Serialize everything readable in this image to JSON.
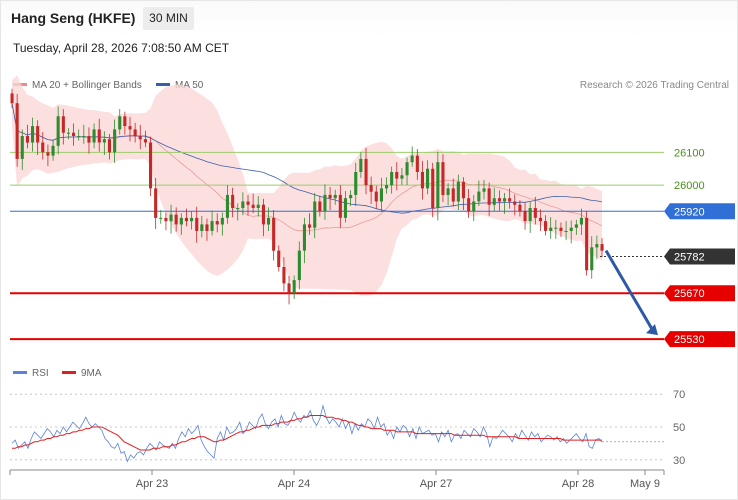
{
  "header": {
    "title": "Hang Seng (HKFE)",
    "timeframe": "30 MIN"
  },
  "datetime": "Tuesday, April 28, 2026 7:08:50 AM CET",
  "credit": "Research © 2026 Trading Central",
  "colors": {
    "bull": "#2e8b2e",
    "bear": "#c62828",
    "support": "#e60000",
    "resistance_faint": "#9acd6a",
    "pivot": "#2f6fd6",
    "last": "#333333",
    "ma50": "#3b5ea8",
    "bb_fill": "#fbd5d5",
    "ma20": "#e99a9a",
    "rsi": "#5b82d8",
    "rsi_ma": "#e02020",
    "arrow": "#2d5aa6"
  },
  "legend": {
    "ma20": "MA 20 + Bollinger Bands",
    "ma50": "MA 50"
  },
  "rsi_legend": {
    "rsi": "RSI",
    "ma": "9MA"
  },
  "chart_data": [
    {
      "type": "candlestick",
      "title": "",
      "price_range": [
        25460,
        26275
      ],
      "x_labels": [
        "Apr 23",
        "Apr 24",
        "Apr 27",
        "Apr 28",
        "May 9"
      ],
      "levels": [
        {
          "value": 26100,
          "label": "26100",
          "kind": "resistance"
        },
        {
          "value": 26000,
          "label": "26000",
          "kind": "resistance"
        },
        {
          "value": 25920,
          "label": "25920",
          "kind": "pivot"
        },
        {
          "value": 25782,
          "label": "25782",
          "kind": "last"
        },
        {
          "value": 25670,
          "label": "25670",
          "kind": "support"
        },
        {
          "value": 25530,
          "label": "25530",
          "kind": "support"
        }
      ],
      "close": [
        26250,
        26080,
        26150,
        26130,
        26180,
        26130,
        26100,
        26090,
        26120,
        26210,
        26160,
        26160,
        26150,
        26150,
        26150,
        26130,
        26170,
        26130,
        26140,
        26100,
        26170,
        26210,
        26180,
        26170,
        26150,
        26140,
        26130,
        25990,
        25900,
        25900,
        25890,
        25910,
        25880,
        25900,
        25890,
        25900,
        25860,
        25880,
        25860,
        25890,
        25880,
        25900,
        25970,
        25930,
        25930,
        25950,
        25940,
        25930,
        25940,
        25880,
        25900,
        25800,
        25750,
        25700,
        25670,
        25710,
        25800,
        25880,
        25870,
        25950,
        25920,
        25970,
        25960,
        25970,
        25900,
        25960,
        25970,
        26040,
        26080,
        26000,
        25980,
        25950,
        25990,
        26000,
        26040,
        26020,
        26030,
        26070,
        26090,
        26040,
        25990,
        26050,
        25930,
        26070,
        25970,
        25990,
        25950,
        26010,
        25960,
        25920,
        25950,
        25980,
        25990,
        25940,
        25960,
        25950,
        25960,
        25950,
        25940,
        25920,
        25890,
        25930,
        25900,
        25890,
        25860,
        25870,
        25870,
        25860,
        25860,
        25870,
        25880,
        25900,
        25740,
        25810,
        25820,
        25800
      ]
    },
    {
      "type": "line",
      "title": "RSI",
      "ylim": [
        25,
        75
      ],
      "ticks": [
        70,
        50,
        30
      ],
      "rsi": [
        40,
        42,
        37,
        39,
        41,
        37,
        43,
        47,
        45,
        43,
        46,
        49,
        47,
        44,
        48,
        46,
        50,
        47,
        50,
        53,
        51,
        49,
        52,
        56,
        52,
        50,
        52,
        50,
        48,
        43,
        41,
        38,
        37,
        40,
        34,
        35,
        29,
        33,
        31,
        34,
        35,
        33,
        37,
        40,
        38,
        36,
        41,
        39,
        38,
        37,
        40,
        37,
        43,
        47,
        44,
        49,
        46,
        48,
        51,
        42,
        38,
        35,
        33,
        31,
        43,
        47,
        42,
        50,
        46,
        47,
        49,
        53,
        46,
        48,
        53,
        51,
        49,
        55,
        58,
        52,
        49,
        53,
        55,
        50,
        57,
        52,
        51,
        54,
        59,
        55,
        53,
        57,
        56,
        60,
        54,
        51,
        55,
        63,
        56,
        52,
        55,
        53,
        50,
        55,
        49,
        53,
        46,
        52,
        48,
        52,
        50,
        55,
        53,
        49,
        56,
        50,
        52,
        45,
        48,
        43,
        50,
        47,
        51,
        49,
        44,
        49,
        43,
        50,
        46,
        47,
        48,
        45,
        46,
        41,
        47,
        44,
        48,
        41,
        45,
        46,
        43,
        48,
        46,
        44,
        49,
        47,
        44,
        50,
        46,
        38,
        44,
        43,
        45,
        48,
        46,
        44,
        41,
        46,
        43,
        48,
        45,
        42,
        47,
        44,
        46,
        41,
        43,
        45,
        44,
        42,
        44,
        41,
        43,
        40,
        42,
        44,
        46,
        43,
        41,
        46,
        38,
        37,
        42,
        43,
        41
      ],
      "rsi_ma": [
        37,
        37,
        38,
        38,
        39,
        39,
        40,
        41,
        41,
        42,
        42,
        43,
        43,
        44,
        44,
        45,
        45,
        46,
        46,
        47,
        47,
        48,
        48,
        49,
        49,
        50,
        50,
        50,
        50,
        49,
        48,
        47,
        46,
        45,
        43,
        41,
        40,
        39,
        38,
        37,
        36,
        36,
        36,
        36,
        37,
        37,
        37,
        38,
        38,
        38,
        39,
        39,
        40,
        41,
        41,
        42,
        43,
        43,
        44,
        44,
        44,
        43,
        42,
        41,
        41,
        42,
        42,
        43,
        44,
        45,
        46,
        47,
        47,
        48,
        48,
        49,
        50,
        50,
        51,
        51,
        51,
        51,
        52,
        52,
        53,
        53,
        53,
        54,
        54,
        55,
        55,
        56,
        56,
        57,
        57,
        57,
        57,
        57,
        56,
        56,
        56,
        55,
        55,
        54,
        54,
        53,
        53,
        52,
        51,
        51,
        50,
        50,
        49,
        49,
        49,
        49,
        48,
        48,
        48,
        48,
        47,
        47,
        47,
        47,
        47,
        47,
        46,
        46,
        46,
        46,
        46,
        46,
        46,
        46,
        46,
        46,
        46,
        46,
        45,
        45,
        45,
        45,
        45,
        45,
        45,
        45,
        45,
        45,
        44,
        44,
        44,
        44,
        44,
        44,
        44,
        44,
        44,
        44,
        43,
        43,
        43,
        43,
        43,
        43,
        43,
        43,
        43,
        43,
        43,
        43,
        43,
        43,
        42,
        42,
        42,
        42,
        42,
        42,
        42,
        42,
        42,
        42,
        42,
        42,
        42
      ]
    }
  ]
}
